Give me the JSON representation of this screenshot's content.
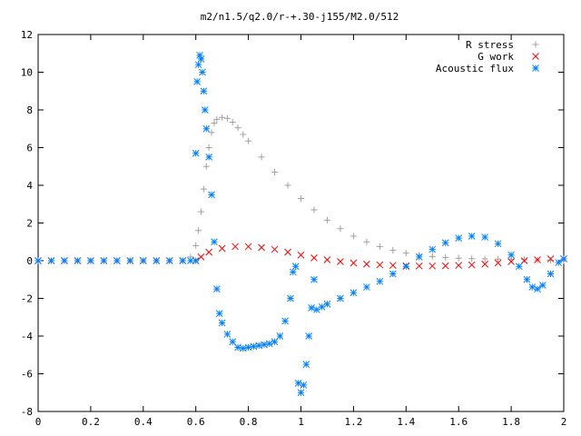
{
  "chart_data": {
    "type": "scatter",
    "title": "m2/n1.5/q2.0/r-+.30-j155/M2.0/512",
    "xlabel": "",
    "ylabel": "",
    "xlim": [
      0,
      2
    ],
    "ylim": [
      -8,
      12
    ],
    "x_ticks": [
      "0",
      "0.2",
      "0.4",
      "0.6",
      "0.8",
      "1",
      "1.2",
      "1.4",
      "1.6",
      "1.8",
      "2"
    ],
    "y_ticks": [
      "-8",
      "-6",
      "-4",
      "-2",
      "0",
      "2",
      "4",
      "6",
      "8",
      "10",
      "12"
    ],
    "legend_position": "top-right",
    "grid": false,
    "series": [
      {
        "name": "R stress",
        "marker": "plus",
        "color": "#a0a0a0",
        "x": [
          0,
          0.05,
          0.1,
          0.15,
          0.2,
          0.25,
          0.3,
          0.35,
          0.4,
          0.45,
          0.5,
          0.55,
          0.58,
          0.6,
          0.61,
          0.62,
          0.63,
          0.64,
          0.65,
          0.66,
          0.67,
          0.68,
          0.7,
          0.72,
          0.74,
          0.76,
          0.78,
          0.8,
          0.85,
          0.9,
          0.95,
          1.0,
          1.05,
          1.1,
          1.15,
          1.2,
          1.25,
          1.3,
          1.35,
          1.4,
          1.45,
          1.5,
          1.55,
          1.6,
          1.65,
          1.7,
          1.75,
          1.8,
          1.85,
          1.9,
          1.95,
          2.0
        ],
        "y": [
          0,
          0,
          0,
          0,
          0,
          0,
          0,
          0,
          0,
          0,
          0,
          0,
          0.2,
          0.8,
          1.6,
          2.6,
          3.8,
          5.0,
          6.0,
          6.8,
          7.3,
          7.5,
          7.6,
          7.55,
          7.35,
          7.05,
          6.7,
          6.35,
          5.5,
          4.7,
          4.0,
          3.3,
          2.7,
          2.15,
          1.7,
          1.3,
          1.0,
          0.75,
          0.55,
          0.4,
          0.3,
          0.22,
          0.17,
          0.13,
          0.11,
          0.1,
          0.09,
          0.08,
          0.06,
          0.04,
          0.02,
          0.0
        ]
      },
      {
        "name": "G work",
        "marker": "cross",
        "color": "#ff0000",
        "x": [
          0,
          0.05,
          0.1,
          0.15,
          0.2,
          0.25,
          0.3,
          0.35,
          0.4,
          0.45,
          0.5,
          0.55,
          0.6,
          0.62,
          0.65,
          0.7,
          0.75,
          0.8,
          0.85,
          0.9,
          0.95,
          1.0,
          1.05,
          1.1,
          1.15,
          1.2,
          1.25,
          1.3,
          1.35,
          1.4,
          1.45,
          1.5,
          1.55,
          1.6,
          1.65,
          1.7,
          1.75,
          1.8,
          1.85,
          1.9,
          1.95,
          2.0
        ],
        "y": [
          0,
          0,
          0,
          0,
          0,
          0,
          0,
          0,
          0,
          0,
          0,
          0,
          0.0,
          0.2,
          0.45,
          0.65,
          0.75,
          0.75,
          0.7,
          0.6,
          0.45,
          0.3,
          0.15,
          0.05,
          -0.05,
          -0.12,
          -0.18,
          -0.22,
          -0.25,
          -0.27,
          -0.28,
          -0.28,
          -0.27,
          -0.25,
          -0.22,
          -0.18,
          -0.12,
          -0.05,
          0.0,
          0.05,
          0.1,
          0.1
        ]
      },
      {
        "name": "Acoustic flux",
        "marker": "star",
        "color": "#0080ff",
        "x": [
          0,
          0.05,
          0.1,
          0.15,
          0.2,
          0.25,
          0.3,
          0.35,
          0.4,
          0.45,
          0.5,
          0.55,
          0.58,
          0.6,
          0.6,
          0.605,
          0.61,
          0.615,
          0.62,
          0.625,
          0.63,
          0.635,
          0.64,
          0.65,
          0.66,
          0.67,
          0.68,
          0.69,
          0.7,
          0.72,
          0.74,
          0.76,
          0.78,
          0.8,
          0.82,
          0.84,
          0.86,
          0.88,
          0.9,
          0.92,
          0.94,
          0.96,
          0.97,
          0.98,
          0.99,
          1.0,
          1.01,
          1.02,
          1.03,
          1.04,
          1.05,
          1.06,
          1.08,
          1.1,
          1.15,
          1.2,
          1.25,
          1.3,
          1.35,
          1.4,
          1.45,
          1.5,
          1.55,
          1.6,
          1.65,
          1.7,
          1.75,
          1.8,
          1.83,
          1.86,
          1.88,
          1.9,
          1.92,
          1.95,
          1.98,
          2.0
        ],
        "y": [
          0,
          0,
          0,
          0,
          0,
          0,
          0,
          0,
          0,
          0,
          0,
          0,
          0,
          0.0,
          5.7,
          9.5,
          10.4,
          10.9,
          10.7,
          10.0,
          9.0,
          8.0,
          7.0,
          5.5,
          3.5,
          1.0,
          -1.5,
          -2.8,
          -3.3,
          -3.9,
          -4.3,
          -4.6,
          -4.65,
          -4.6,
          -4.55,
          -4.5,
          -4.45,
          -4.4,
          -4.3,
          -4.0,
          -3.2,
          -2.0,
          -0.6,
          -0.3,
          -6.5,
          -7.0,
          -6.6,
          -5.5,
          -4.0,
          -2.5,
          -1.0,
          -2.6,
          -2.45,
          -2.3,
          -2.0,
          -1.7,
          -1.4,
          -1.1,
          -0.7,
          -0.3,
          0.2,
          0.6,
          0.95,
          1.2,
          1.3,
          1.25,
          0.9,
          0.3,
          -0.3,
          -1.0,
          -1.4,
          -1.5,
          -1.3,
          -0.7,
          -0.1,
          0.1
        ]
      }
    ]
  }
}
